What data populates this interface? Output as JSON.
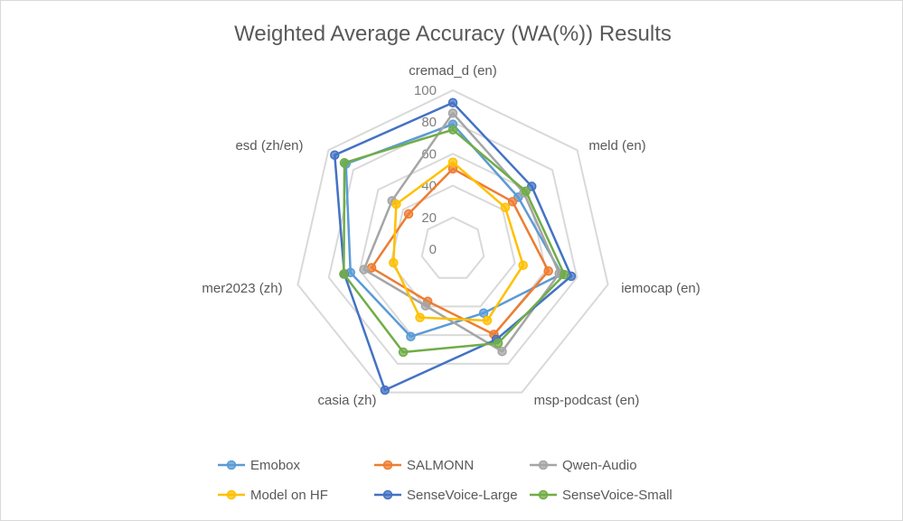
{
  "chart_data": {
    "type": "radar",
    "title": "Weighted Average Accuracy (WA(%)) Results",
    "axes": [
      "cremad_d (en)",
      "meld (en)",
      "iemocap (en)",
      "msp-podcast (en)",
      "casia (zh)",
      "mer2023 (zh)",
      "esd  (zh/en)"
    ],
    "radial_range": [
      0,
      100
    ],
    "radial_ticks": [
      "0",
      "20",
      "40",
      "60",
      "80",
      "100"
    ],
    "grid": true,
    "legend_position": "bottom",
    "series": [
      {
        "name": "Emobox",
        "color": "#5B9BD5",
        "values": [
          78.6,
          52.5,
          70,
          44.6,
          61,
          66,
          86
        ]
      },
      {
        "name": "SALMONN",
        "color": "#ED7D31",
        "values": [
          50.6,
          48,
          61.6,
          59.5,
          36.4,
          52.4,
          35.6
        ]
      },
      {
        "name": "Qwen-Audio",
        "color": "#A5A5A5",
        "values": [
          85.6,
          57,
          68.6,
          71.4,
          39.5,
          57.3,
          48.9
        ]
      },
      {
        "name": "Model on HF",
        "color": "#FFC000",
        "values": [
          54.7,
          42.1,
          45.3,
          49.8,
          47.7,
          38.3,
          45.5
        ]
      },
      {
        "name": "SenseVoice-Large",
        "color": "#4472C4",
        "values": [
          92.2,
          63.4,
          76.3,
          63,
          98.4,
          70,
          95
        ]
      },
      {
        "name": "SenseVoice-Small",
        "color": "#70AD47",
        "values": [
          75.2,
          58.6,
          71.9,
          65.6,
          71.9,
          70.3,
          87.2
        ]
      }
    ]
  }
}
